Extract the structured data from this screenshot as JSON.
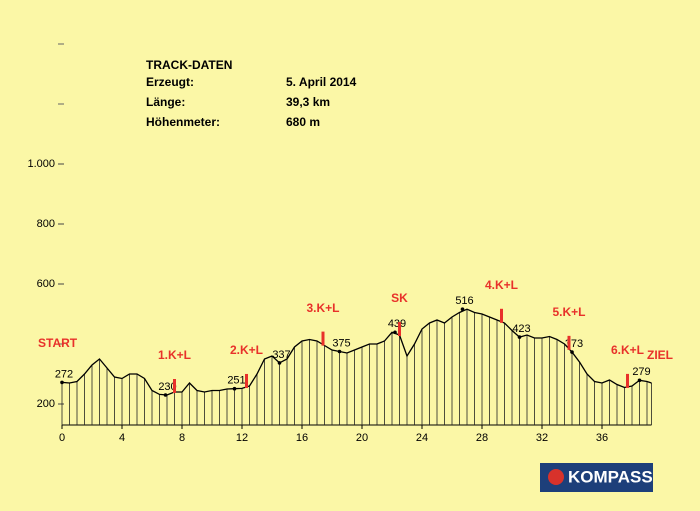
{
  "chart_data": {
    "type": "elevation-profile",
    "header": {
      "title": "TRACK-DATEN",
      "rows": [
        [
          "Erzeugt:",
          "5. April 2014"
        ],
        [
          "Länge:",
          "39,3 km"
        ],
        [
          "Höhenmeter:",
          "680 m"
        ]
      ]
    },
    "xlim": [
      0,
      39.3
    ],
    "ylim": [
      130,
      1450
    ],
    "xticks": [
      0,
      4,
      8,
      12,
      16,
      20,
      24,
      28,
      32,
      36
    ],
    "yticks": [
      200,
      600,
      800,
      {
        "value": 1000,
        "label": "1.000"
      }
    ],
    "yminorticks": [
      400,
      1200,
      1400
    ],
    "x": [
      0,
      0.5,
      1,
      1.5,
      2,
      2.5,
      3,
      3.5,
      4,
      4.5,
      5,
      5.5,
      6,
      6.5,
      7,
      7.5,
      8,
      8.5,
      9,
      9.5,
      10,
      10.5,
      11,
      11.5,
      12,
      12.5,
      13,
      13.5,
      14,
      14.5,
      15,
      15.5,
      16,
      16.5,
      17,
      17.5,
      18,
      18.5,
      19,
      19.5,
      20,
      20.5,
      21,
      21.5,
      22,
      22.5,
      23,
      23.5,
      24,
      24.5,
      25,
      25.5,
      26,
      26.5,
      27,
      27.5,
      28,
      28.5,
      29,
      29.5,
      30,
      30.5,
      31,
      31.5,
      32,
      32.5,
      33,
      33.5,
      34,
      34.5,
      35,
      35.5,
      36,
      36.5,
      37,
      37.5,
      38,
      38.5,
      39,
      39.3
    ],
    "values": [
      272,
      270,
      275,
      300,
      330,
      350,
      320,
      290,
      285,
      300,
      300,
      285,
      245,
      232,
      230,
      240,
      240,
      270,
      245,
      240,
      245,
      245,
      250,
      251,
      252,
      260,
      300,
      350,
      360,
      337,
      350,
      390,
      410,
      415,
      410,
      395,
      380,
      375,
      370,
      380,
      390,
      400,
      400,
      410,
      439,
      430,
      360,
      400,
      450,
      470,
      480,
      470,
      490,
      505,
      516,
      505,
      500,
      490,
      480,
      470,
      445,
      423,
      430,
      420,
      420,
      425,
      415,
      400,
      373,
      340,
      300,
      275,
      270,
      280,
      265,
      255,
      260,
      279,
      275,
      270
    ],
    "color": "#000000",
    "points": [
      {
        "x": 0,
        "value": 272
      },
      {
        "x": 6.9,
        "value": 230
      },
      {
        "x": 11.5,
        "value": 251
      },
      {
        "x": 14.5,
        "value": 337
      },
      {
        "x": 18.5,
        "value": 375
      },
      {
        "x": 22.2,
        "value": 439
      },
      {
        "x": 26.7,
        "value": 516
      },
      {
        "x": 30.5,
        "value": 423
      },
      {
        "x": 34,
        "value": 373
      },
      {
        "x": 38.5,
        "value": 279
      }
    ],
    "marker_color": "#e8312a",
    "markers": [
      {
        "label": "1.K+L",
        "x": 7.5
      },
      {
        "label": "2.K+L",
        "x": 12.3
      },
      {
        "label": "3.K+L",
        "x": 17.4
      },
      {
        "label": "SK",
        "x": 22.5
      },
      {
        "label": "4.K+L",
        "x": 29.3
      },
      {
        "label": "5.K+L",
        "x": 33.8
      },
      {
        "label": "6.K+L",
        "x": 37.7
      }
    ],
    "start_label": "START",
    "end_label": "ZIEL",
    "logo": "KOMPASS"
  }
}
